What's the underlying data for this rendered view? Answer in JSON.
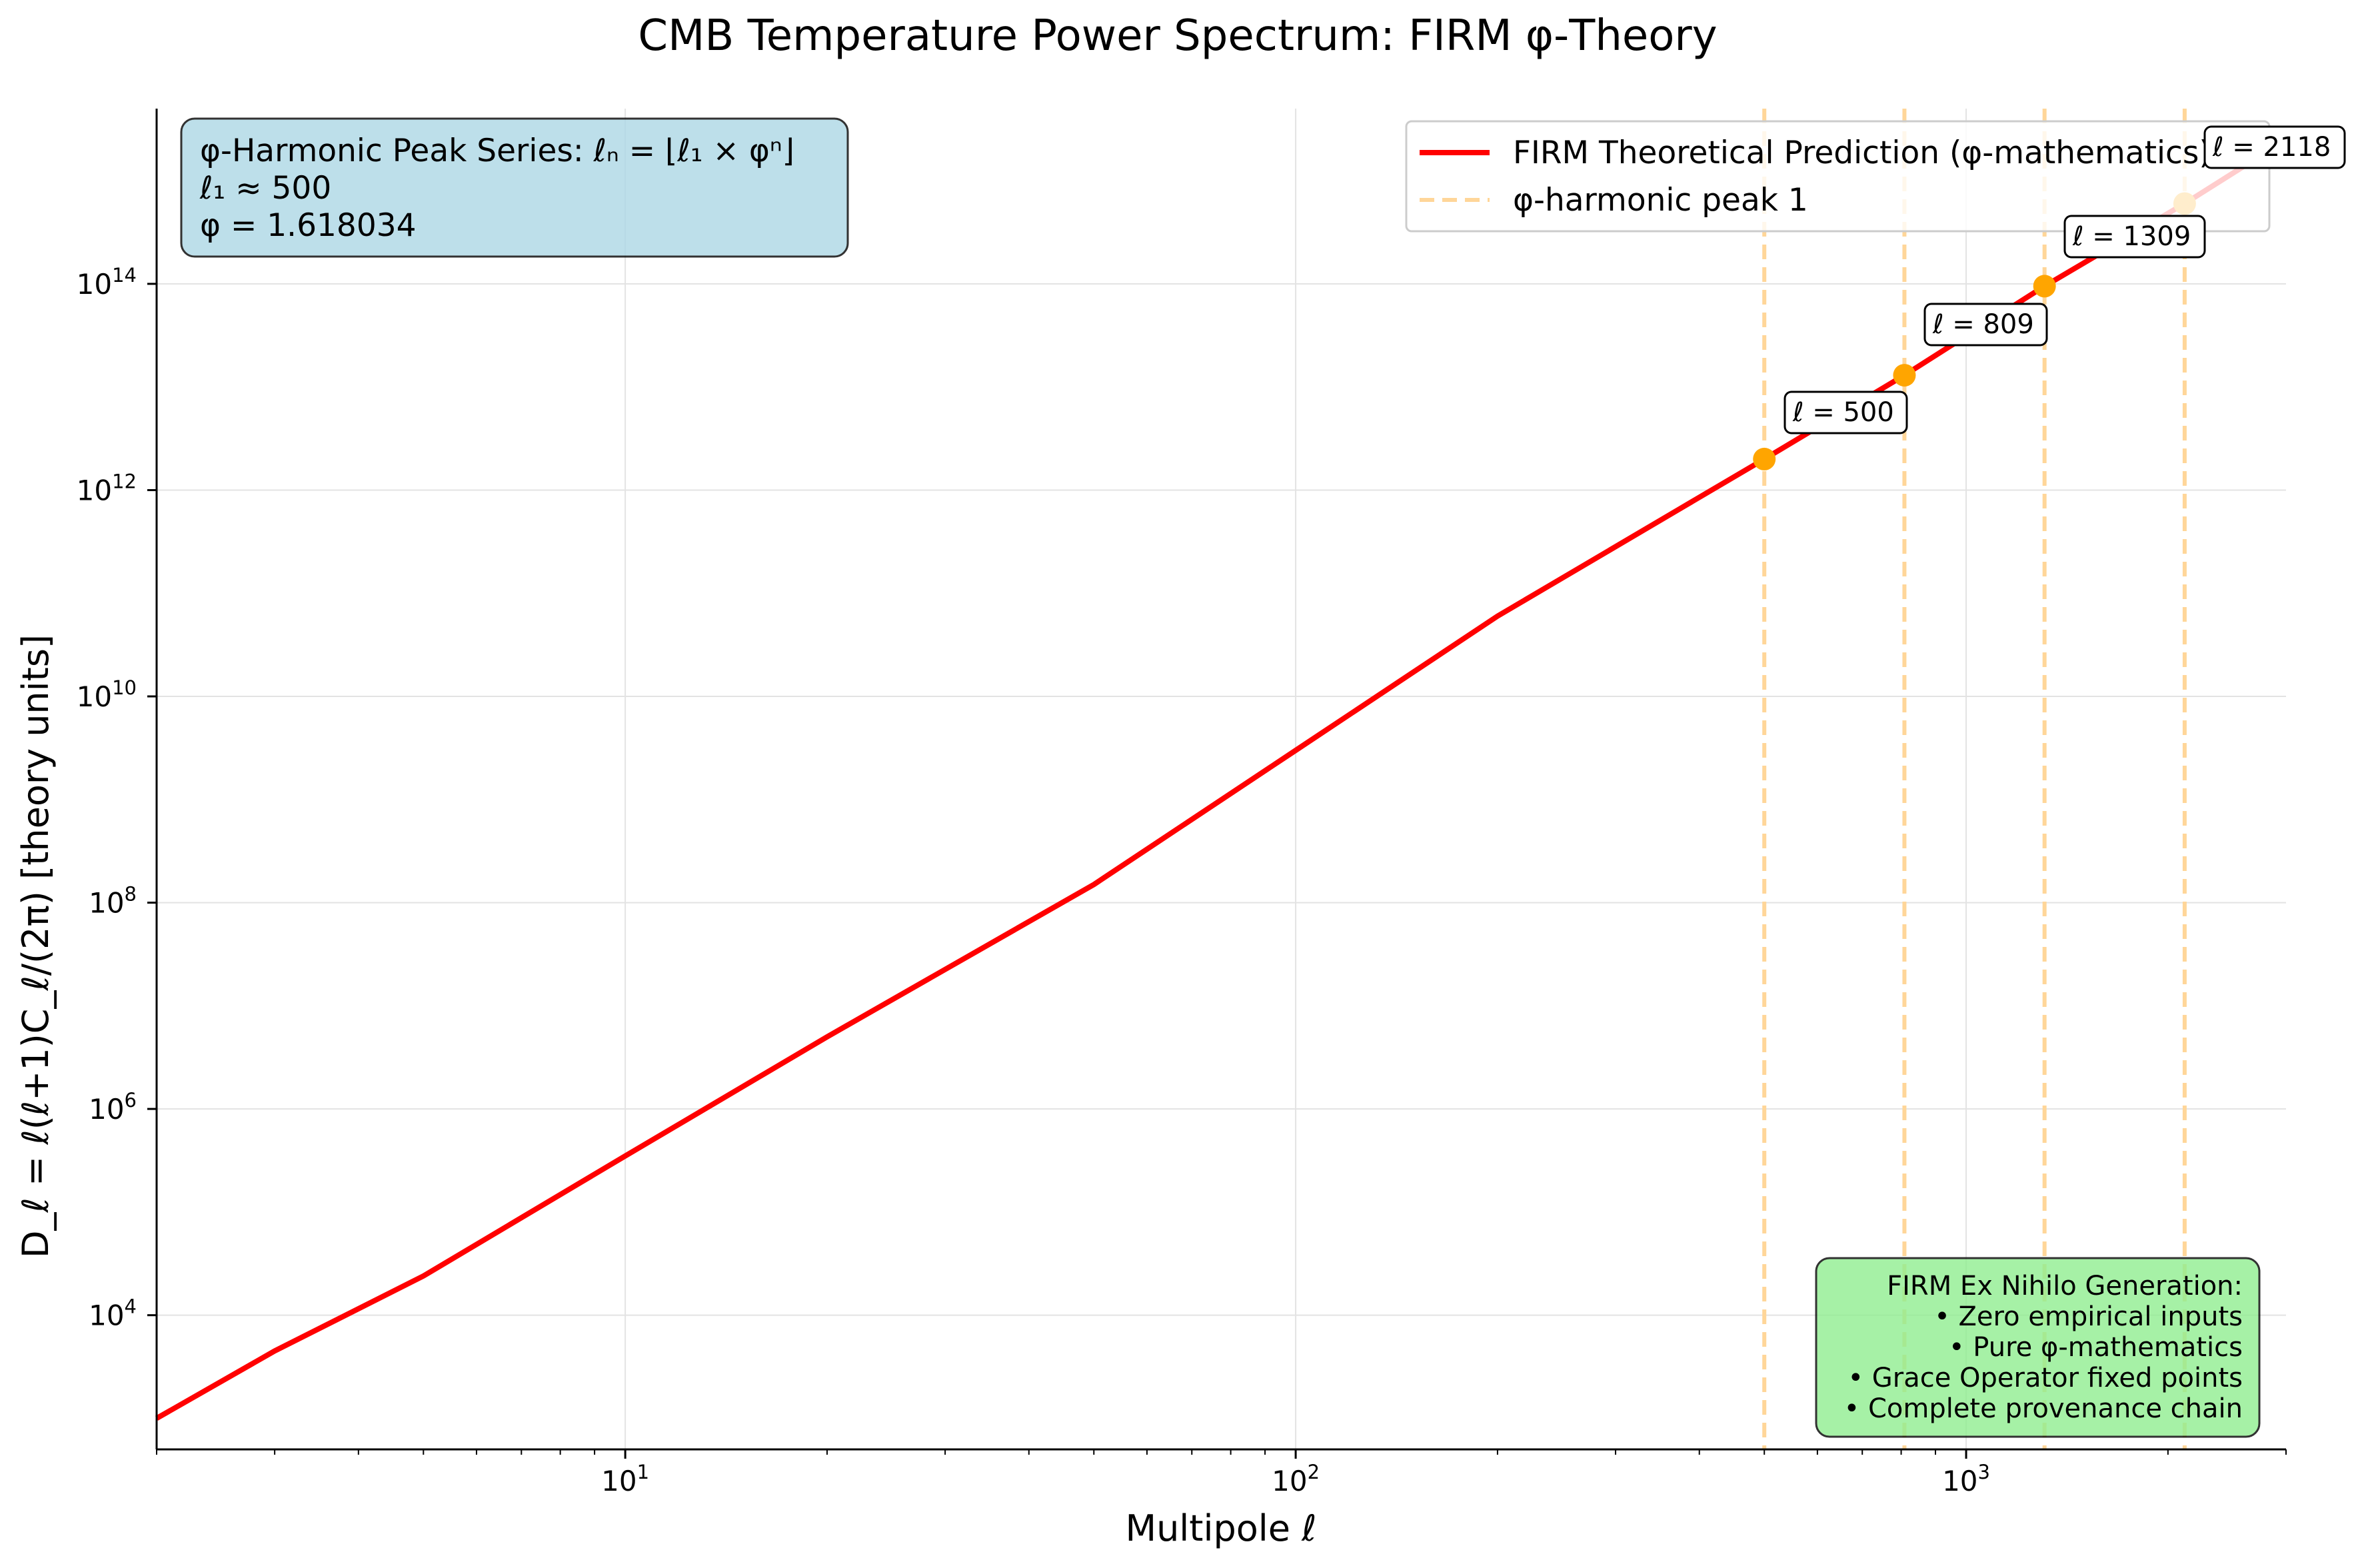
{
  "title": "CMB Temperature Power Spectrum: FIRM φ-Theory",
  "chart_data": {
    "type": "line",
    "title": "CMB Temperature Power Spectrum: FIRM φ-Theory",
    "xlabel": "Multipole ℓ",
    "ylabel": "D_ℓ = ℓ(ℓ+1)C_ℓ/(2π) [theory units]",
    "xscale": "log",
    "yscale": "log",
    "xlim": [
      2,
      3000
    ],
    "ylim": [
      500,
      5000000000000000.0
    ],
    "grid": true,
    "legend_position": "top-right",
    "x_ticks": [
      {
        "value": 10,
        "base": "10",
        "exp": "1"
      },
      {
        "value": 100,
        "base": "10",
        "exp": "2"
      },
      {
        "value": 1000,
        "base": "10",
        "exp": "3"
      }
    ],
    "y_ticks": [
      {
        "value": 10000,
        "base": "10",
        "exp": "4"
      },
      {
        "value": 1000000,
        "base": "10",
        "exp": "6"
      },
      {
        "value": 100000000,
        "base": "10",
        "exp": "8"
      },
      {
        "value": 10000000000,
        "base": "10",
        "exp": "10"
      },
      {
        "value": 1000000000000,
        "base": "10",
        "exp": "12"
      },
      {
        "value": 100000000000000,
        "base": "10",
        "exp": "14"
      }
    ],
    "series": [
      {
        "name": "FIRM Theoretical Prediction (φ-mathematics)",
        "color": "#ff0000",
        "x": [
          2,
          3,
          5,
          10,
          20,
          50,
          100,
          200,
          500,
          809,
          1309,
          2118,
          3000
        ],
        "y": [
          1000,
          4500,
          24000,
          350000,
          5000000,
          150000000,
          3000000000,
          60000000000,
          2000000000000,
          13000000000000,
          95000000000000,
          600000000000000,
          2500000000000000
        ]
      }
    ],
    "peaks": {
      "legend_label": "φ-harmonic peak 1",
      "line_color": "#ffd699",
      "marker_color": "#ffa500",
      "items": [
        {
          "ell": 500,
          "y": 2000000000000,
          "label": "ℓ = 500"
        },
        {
          "ell": 809,
          "y": 13000000000000,
          "label": "ℓ = 809"
        },
        {
          "ell": 1309,
          "y": 95000000000000,
          "label": "ℓ = 1309"
        },
        {
          "ell": 2118,
          "y": 600000000000000,
          "label": "ℓ = 2118"
        }
      ]
    },
    "annotations": {
      "info_box": {
        "lines": [
          "φ-Harmonic Peak Series: ℓₙ = ⌊ℓ₁ × φⁿ⌋",
          "ℓ₁ ≈ 500",
          "φ = 1.618034"
        ],
        "color": "#add8e6"
      },
      "generation_box": {
        "lines": [
          "FIRM Ex Nihilo Generation:",
          "• Zero empirical inputs",
          "• Pure φ-mathematics",
          "• Grace Operator fixed points",
          "• Complete provenance chain"
        ],
        "color": "#90ee90"
      }
    }
  }
}
